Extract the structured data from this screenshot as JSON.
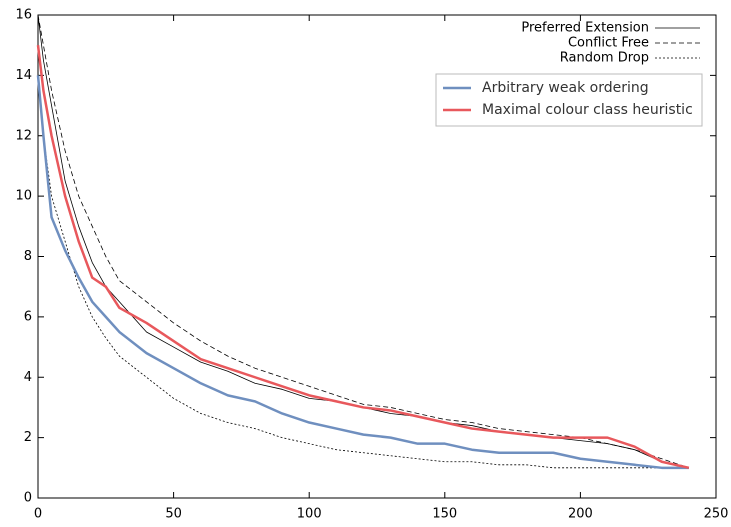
{
  "chart_data": {
    "type": "line",
    "x": [
      0,
      2,
      5,
      10,
      15,
      20,
      25,
      30,
      40,
      50,
      60,
      70,
      80,
      90,
      100,
      110,
      120,
      130,
      140,
      150,
      160,
      170,
      180,
      190,
      200,
      210,
      220,
      230,
      240
    ],
    "series": [
      {
        "name": "Preferred Extension",
        "color": "#000000",
        "width": 0.8,
        "dash": "solid",
        "values": [
          16,
          14.5,
          13,
          10.5,
          9,
          7.8,
          7,
          6.5,
          5.5,
          5.0,
          4.5,
          4.2,
          3.8,
          3.6,
          3.3,
          3.2,
          3.0,
          2.8,
          2.7,
          2.5,
          2.4,
          2.2,
          2.1,
          2.0,
          1.9,
          1.8,
          1.6,
          1.2,
          1.0
        ]
      },
      {
        "name": "Conflict Free",
        "color": "#000000",
        "width": 0.8,
        "dash": "dashed",
        "values": [
          16,
          15,
          13.5,
          11.5,
          10,
          9,
          8,
          7.2,
          6.5,
          5.8,
          5.2,
          4.7,
          4.3,
          4.0,
          3.7,
          3.4,
          3.1,
          3.0,
          2.8,
          2.6,
          2.5,
          2.3,
          2.2,
          2.1,
          2.0,
          1.8,
          1.6,
          1.3,
          1.0
        ]
      },
      {
        "name": "Random Drop",
        "color": "#000000",
        "width": 0.8,
        "dash": "dotted",
        "values": [
          14,
          12,
          10,
          8.5,
          7,
          6.0,
          5.3,
          4.7,
          4.0,
          3.3,
          2.8,
          2.5,
          2.3,
          2.0,
          1.8,
          1.6,
          1.5,
          1.4,
          1.3,
          1.2,
          1.2,
          1.1,
          1.1,
          1.0,
          1.0,
          1.0,
          1.0,
          1.0,
          1.0
        ]
      },
      {
        "name": "Arbitrary weak ordering",
        "color": "#6f8fbf",
        "width": 2.5,
        "dash": "solid",
        "values": [
          14,
          12,
          9.3,
          8.2,
          7.3,
          6.5,
          6.0,
          5.5,
          4.8,
          4.3,
          3.8,
          3.4,
          3.2,
          2.8,
          2.5,
          2.3,
          2.1,
          2.0,
          1.8,
          1.8,
          1.6,
          1.5,
          1.5,
          1.5,
          1.3,
          1.2,
          1.1,
          1.0,
          1.0
        ]
      },
      {
        "name": "Maximal colour class heuristic",
        "color": "#e8585c",
        "width": 2.5,
        "dash": "solid",
        "values": [
          15,
          13.5,
          12,
          10,
          8.5,
          7.3,
          7,
          6.3,
          5.8,
          5.2,
          4.6,
          4.3,
          4.0,
          3.7,
          3.4,
          3.2,
          3.0,
          2.9,
          2.7,
          2.5,
          2.3,
          2.2,
          2.1,
          2.0,
          2.0,
          2.0,
          1.7,
          1.2,
          1.0
        ]
      }
    ],
    "xlim": [
      0,
      250
    ],
    "xticks": [
      0,
      50,
      100,
      150,
      200,
      250
    ],
    "ylim": [
      0,
      16
    ],
    "yticks": [
      0,
      2,
      4,
      6,
      8,
      10,
      12,
      14,
      16
    ]
  }
}
